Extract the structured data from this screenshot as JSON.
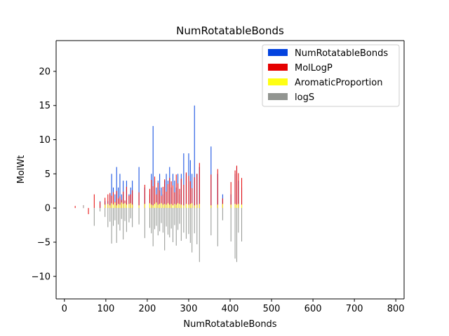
{
  "chart_data": {
    "type": "bar",
    "title": "NumRotatableBonds",
    "xlabel": "NumRotatableBonds",
    "ylabel": "MolWt",
    "xlim": [
      -20,
      820
    ],
    "ylim": [
      -13.3,
      24.5
    ],
    "xticks": [
      0,
      100,
      200,
      300,
      400,
      500,
      600,
      700,
      800
    ],
    "yticks": [
      -10,
      -5,
      0,
      5,
      10,
      15,
      20
    ],
    "grid": false,
    "legend_position": "top-right",
    "series": [
      {
        "name": "NumRotatableBonds",
        "color": "#0343df",
        "points": [
          {
            "x": 26,
            "y": 0
          },
          {
            "x": 46,
            "y": 0
          },
          {
            "x": 58,
            "y": 0
          },
          {
            "x": 72,
            "y": 0
          },
          {
            "x": 86,
            "y": 1
          },
          {
            "x": 98,
            "y": 1
          },
          {
            "x": 105,
            "y": 1
          },
          {
            "x": 110,
            "y": 2
          },
          {
            "x": 114,
            "y": 5
          },
          {
            "x": 118,
            "y": 3
          },
          {
            "x": 122,
            "y": 2
          },
          {
            "x": 126,
            "y": 6
          },
          {
            "x": 130,
            "y": 3
          },
          {
            "x": 134,
            "y": 5
          },
          {
            "x": 138,
            "y": 2
          },
          {
            "x": 142,
            "y": 4
          },
          {
            "x": 146,
            "y": 1
          },
          {
            "x": 150,
            "y": 4
          },
          {
            "x": 156,
            "y": 2
          },
          {
            "x": 160,
            "y": 3
          },
          {
            "x": 164,
            "y": 4
          },
          {
            "x": 180,
            "y": 6
          },
          {
            "x": 194,
            "y": 3
          },
          {
            "x": 206,
            "y": 2
          },
          {
            "x": 210,
            "y": 5
          },
          {
            "x": 214,
            "y": 12
          },
          {
            "x": 218,
            "y": 4
          },
          {
            "x": 222,
            "y": 3
          },
          {
            "x": 226,
            "y": 4
          },
          {
            "x": 230,
            "y": 5
          },
          {
            "x": 234,
            "y": 3
          },
          {
            "x": 238,
            "y": 2
          },
          {
            "x": 242,
            "y": 4
          },
          {
            "x": 246,
            "y": 5
          },
          {
            "x": 250,
            "y": 4
          },
          {
            "x": 254,
            "y": 6
          },
          {
            "x": 258,
            "y": 3
          },
          {
            "x": 262,
            "y": 5
          },
          {
            "x": 266,
            "y": 4
          },
          {
            "x": 270,
            "y": 3
          },
          {
            "x": 274,
            "y": 5
          },
          {
            "x": 278,
            "y": 2
          },
          {
            "x": 282,
            "y": 5
          },
          {
            "x": 288,
            "y": 8
          },
          {
            "x": 294,
            "y": 5
          },
          {
            "x": 300,
            "y": 8
          },
          {
            "x": 304,
            "y": 7
          },
          {
            "x": 308,
            "y": 5
          },
          {
            "x": 314,
            "y": 15
          },
          {
            "x": 320,
            "y": 5
          },
          {
            "x": 326,
            "y": 6
          },
          {
            "x": 354,
            "y": 9
          },
          {
            "x": 370,
            "y": 5
          },
          {
            "x": 382,
            "y": 2
          },
          {
            "x": 402,
            "y": 2
          },
          {
            "x": 412,
            "y": 5
          },
          {
            "x": 416,
            "y": 6
          },
          {
            "x": 420,
            "y": 4
          },
          {
            "x": 428,
            "y": 3
          }
        ]
      },
      {
        "name": "MolLogP",
        "color": "#e50000",
        "points": [
          {
            "x": 26,
            "y": 0.3
          },
          {
            "x": 46,
            "y": 0.4
          },
          {
            "x": 58,
            "y": -0.9
          },
          {
            "x": 72,
            "y": 2.0
          },
          {
            "x": 86,
            "y": 0.9
          },
          {
            "x": 98,
            "y": 1.5
          },
          {
            "x": 105,
            "y": 2.0
          },
          {
            "x": 110,
            "y": 2.2
          },
          {
            "x": 114,
            "y": 1.8
          },
          {
            "x": 118,
            "y": 2.3
          },
          {
            "x": 122,
            "y": 0.9
          },
          {
            "x": 126,
            "y": 2.5
          },
          {
            "x": 130,
            "y": 1.4
          },
          {
            "x": 134,
            "y": 1.7
          },
          {
            "x": 138,
            "y": 1.2
          },
          {
            "x": 142,
            "y": 2.4
          },
          {
            "x": 146,
            "y": 1.1
          },
          {
            "x": 150,
            "y": 3.1
          },
          {
            "x": 156,
            "y": 1.8
          },
          {
            "x": 160,
            "y": 2.0
          },
          {
            "x": 164,
            "y": 2.6
          },
          {
            "x": 180,
            "y": 2.3
          },
          {
            "x": 194,
            "y": 3.4
          },
          {
            "x": 206,
            "y": 2.8
          },
          {
            "x": 210,
            "y": 4.1
          },
          {
            "x": 214,
            "y": 3.2
          },
          {
            "x": 218,
            "y": 4.6
          },
          {
            "x": 222,
            "y": 2.0
          },
          {
            "x": 226,
            "y": 3.7
          },
          {
            "x": 230,
            "y": 2.6
          },
          {
            "x": 234,
            "y": 1.8
          },
          {
            "x": 238,
            "y": 3.1
          },
          {
            "x": 242,
            "y": 4.2
          },
          {
            "x": 246,
            "y": 2.4
          },
          {
            "x": 250,
            "y": 3.5
          },
          {
            "x": 254,
            "y": 4.4
          },
          {
            "x": 258,
            "y": 3.9
          },
          {
            "x": 262,
            "y": 3.3
          },
          {
            "x": 266,
            "y": 2.3
          },
          {
            "x": 270,
            "y": 4.9
          },
          {
            "x": 274,
            "y": 3.6
          },
          {
            "x": 278,
            "y": 2.8
          },
          {
            "x": 282,
            "y": 4.3
          },
          {
            "x": 288,
            "y": 3.4
          },
          {
            "x": 294,
            "y": 5.2
          },
          {
            "x": 300,
            "y": 4.7
          },
          {
            "x": 304,
            "y": 3.9
          },
          {
            "x": 308,
            "y": 2.9
          },
          {
            "x": 314,
            "y": 4.5
          },
          {
            "x": 320,
            "y": 5.0
          },
          {
            "x": 326,
            "y": 6.6
          },
          {
            "x": 354,
            "y": 4.9
          },
          {
            "x": 370,
            "y": 5.7
          },
          {
            "x": 382,
            "y": 1.4
          },
          {
            "x": 402,
            "y": 3.8
          },
          {
            "x": 412,
            "y": 5.5
          },
          {
            "x": 416,
            "y": 6.2
          },
          {
            "x": 420,
            "y": 5.1
          },
          {
            "x": 428,
            "y": 4.4
          }
        ]
      },
      {
        "name": "AromaticProportion",
        "color": "#ffff14",
        "points": [
          {
            "x": 26,
            "y": 0.0
          },
          {
            "x": 46,
            "y": 0.0
          },
          {
            "x": 58,
            "y": 0.0
          },
          {
            "x": 72,
            "y": 0.0
          },
          {
            "x": 86,
            "y": 0.0
          },
          {
            "x": 98,
            "y": 0.5
          },
          {
            "x": 105,
            "y": 0.6
          },
          {
            "x": 110,
            "y": 0.4
          },
          {
            "x": 114,
            "y": 0.7
          },
          {
            "x": 118,
            "y": 0.5
          },
          {
            "x": 122,
            "y": 0.8
          },
          {
            "x": 126,
            "y": 0.4
          },
          {
            "x": 130,
            "y": 0.6
          },
          {
            "x": 134,
            "y": 0.5
          },
          {
            "x": 138,
            "y": 0.8
          },
          {
            "x": 142,
            "y": 0.6
          },
          {
            "x": 146,
            "y": 0.7
          },
          {
            "x": 150,
            "y": 0.5
          },
          {
            "x": 156,
            "y": 0.6
          },
          {
            "x": 160,
            "y": 0.7
          },
          {
            "x": 164,
            "y": 0.5
          },
          {
            "x": 180,
            "y": 0.4
          },
          {
            "x": 194,
            "y": 0.6
          },
          {
            "x": 206,
            "y": 0.7
          },
          {
            "x": 210,
            "y": 0.5
          },
          {
            "x": 214,
            "y": 0.4
          },
          {
            "x": 218,
            "y": 0.6
          },
          {
            "x": 222,
            "y": 0.8
          },
          {
            "x": 226,
            "y": 0.5
          },
          {
            "x": 230,
            "y": 0.6
          },
          {
            "x": 234,
            "y": 0.7
          },
          {
            "x": 238,
            "y": 0.5
          },
          {
            "x": 242,
            "y": 0.6
          },
          {
            "x": 246,
            "y": 0.5
          },
          {
            "x": 250,
            "y": 0.7
          },
          {
            "x": 254,
            "y": 0.5
          },
          {
            "x": 258,
            "y": 0.6
          },
          {
            "x": 262,
            "y": 0.4
          },
          {
            "x": 266,
            "y": 0.6
          },
          {
            "x": 270,
            "y": 0.5
          },
          {
            "x": 274,
            "y": 0.7
          },
          {
            "x": 278,
            "y": 0.6
          },
          {
            "x": 282,
            "y": 0.5
          },
          {
            "x": 288,
            "y": 0.4
          },
          {
            "x": 294,
            "y": 0.6
          },
          {
            "x": 300,
            "y": 0.5
          },
          {
            "x": 304,
            "y": 0.6
          },
          {
            "x": 308,
            "y": 0.7
          },
          {
            "x": 314,
            "y": 0.4
          },
          {
            "x": 320,
            "y": 0.5
          },
          {
            "x": 326,
            "y": 0.6
          },
          {
            "x": 354,
            "y": 0.4
          },
          {
            "x": 370,
            "y": 0.5
          },
          {
            "x": 382,
            "y": 0.6
          },
          {
            "x": 402,
            "y": 0.5
          },
          {
            "x": 412,
            "y": 0.6
          },
          {
            "x": 416,
            "y": 0.5
          },
          {
            "x": 420,
            "y": 0.6
          },
          {
            "x": 428,
            "y": 0.5
          }
        ]
      },
      {
        "name": "logS",
        "color": "#929591",
        "points": [
          {
            "x": 26,
            "y": 0.0
          },
          {
            "x": 46,
            "y": 0.4
          },
          {
            "x": 58,
            "y": 0.0
          },
          {
            "x": 72,
            "y": -2.6
          },
          {
            "x": 86,
            "y": -0.5
          },
          {
            "x": 98,
            "y": -1.3
          },
          {
            "x": 105,
            "y": -2.8
          },
          {
            "x": 110,
            "y": -2.0
          },
          {
            "x": 114,
            "y": -5.2
          },
          {
            "x": 118,
            "y": -2.6
          },
          {
            "x": 122,
            "y": -1.8
          },
          {
            "x": 126,
            "y": -5.1
          },
          {
            "x": 130,
            "y": -2.4
          },
          {
            "x": 134,
            "y": -3.3
          },
          {
            "x": 138,
            "y": -1.6
          },
          {
            "x": 142,
            "y": -4.6
          },
          {
            "x": 146,
            "y": -1.9
          },
          {
            "x": 150,
            "y": -3.5
          },
          {
            "x": 156,
            "y": -2.1
          },
          {
            "x": 160,
            "y": -1.5
          },
          {
            "x": 164,
            "y": -2.8
          },
          {
            "x": 180,
            "y": -2.4
          },
          {
            "x": 194,
            "y": -4.4
          },
          {
            "x": 206,
            "y": -2.9
          },
          {
            "x": 210,
            "y": -3.7
          },
          {
            "x": 214,
            "y": -5.6
          },
          {
            "x": 218,
            "y": -3.1
          },
          {
            "x": 222,
            "y": -2.6
          },
          {
            "x": 226,
            "y": -4.0
          },
          {
            "x": 230,
            "y": -3.4
          },
          {
            "x": 234,
            "y": -2.2
          },
          {
            "x": 238,
            "y": -3.6
          },
          {
            "x": 242,
            "y": -6.2
          },
          {
            "x": 246,
            "y": -2.7
          },
          {
            "x": 250,
            "y": -3.9
          },
          {
            "x": 254,
            "y": -4.3
          },
          {
            "x": 258,
            "y": -3.0
          },
          {
            "x": 262,
            "y": -5.0
          },
          {
            "x": 266,
            "y": -2.5
          },
          {
            "x": 270,
            "y": -5.5
          },
          {
            "x": 274,
            "y": -3.2
          },
          {
            "x": 278,
            "y": -2.3
          },
          {
            "x": 282,
            "y": -4.8
          },
          {
            "x": 288,
            "y": -3.6
          },
          {
            "x": 294,
            "y": -4.5
          },
          {
            "x": 300,
            "y": -3.8
          },
          {
            "x": 304,
            "y": -5.1
          },
          {
            "x": 308,
            "y": -6.5
          },
          {
            "x": 314,
            "y": -3.7
          },
          {
            "x": 320,
            "y": -5.3
          },
          {
            "x": 326,
            "y": -7.9
          },
          {
            "x": 354,
            "y": -4.0
          },
          {
            "x": 370,
            "y": -5.6
          },
          {
            "x": 382,
            "y": -1.8
          },
          {
            "x": 402,
            "y": -4.9
          },
          {
            "x": 412,
            "y": -7.4
          },
          {
            "x": 416,
            "y": -7.9
          },
          {
            "x": 420,
            "y": -3.6
          },
          {
            "x": 428,
            "y": -4.9
          }
        ]
      }
    ]
  }
}
